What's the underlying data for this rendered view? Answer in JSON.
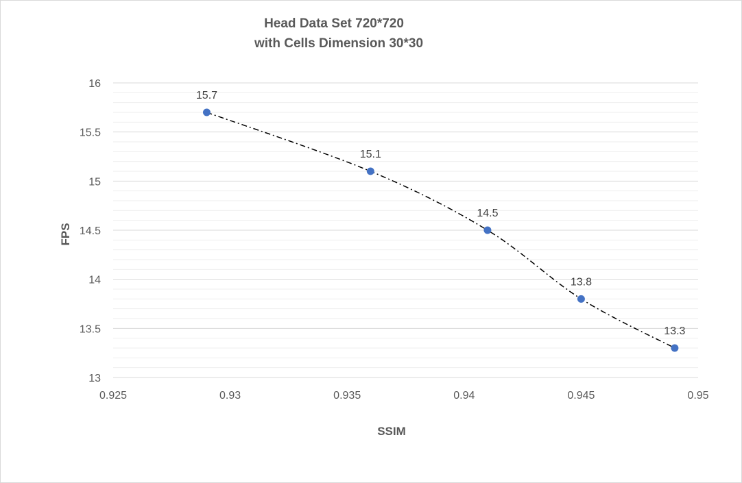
{
  "chart_data": {
    "type": "scatter",
    "title_lines": [
      "Head Data Set 720*720",
      "with Cells Dimension 30*30"
    ],
    "xlabel": "SSIM",
    "ylabel": "FPS",
    "xlim": [
      0.925,
      0.95
    ],
    "ylim": [
      13,
      16
    ],
    "x_ticks": [
      "0.925",
      "0.93",
      "0.935",
      "0.94",
      "0.945",
      "0.95"
    ],
    "y_ticks": [
      "13",
      "13.5",
      "14",
      "14.5",
      "15",
      "15.5",
      "16"
    ],
    "grid": {
      "major_y": true,
      "minor_y": true,
      "minor_step": 0.1
    },
    "series": [
      {
        "x": [
          0.929,
          0.936,
          0.941,
          0.945,
          0.949
        ],
        "y": [
          15.7,
          15.1,
          14.5,
          13.8,
          13.3
        ],
        "labels": [
          "15.7",
          "15.1",
          "14.5",
          "13.8",
          "13.3"
        ],
        "marker_color": "#4472C4",
        "line_style": "dash-dot",
        "line_color": "#000000"
      }
    ]
  }
}
